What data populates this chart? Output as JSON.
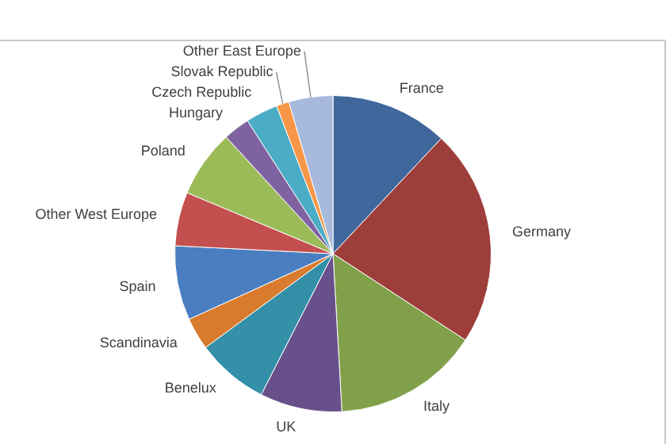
{
  "chart_data": {
    "type": "pie",
    "categories": [
      "France",
      "Germany",
      "Italy",
      "UK",
      "Benelux",
      "Scandinavia",
      "Spain",
      "Other West Europe",
      "Poland",
      "Hungary",
      "Czech Republic",
      "Slovak Republic",
      "Other East Europe"
    ],
    "values": [
      12,
      22.2,
      14.9,
      8.4,
      7.4,
      3.3,
      7.6,
      5.5,
      6.9,
      2.7,
      3.3,
      1.3,
      4.5
    ],
    "colors": [
      "#3f679c",
      "#9e3e3b",
      "#81a04a",
      "#68508a",
      "#3390a8",
      "#d97b2d",
      "#4a7ec1",
      "#c3504e",
      "#9bbb59",
      "#7e62a1",
      "#4bacc6",
      "#f79646",
      "#a7b9dd"
    ],
    "legend": false
  }
}
